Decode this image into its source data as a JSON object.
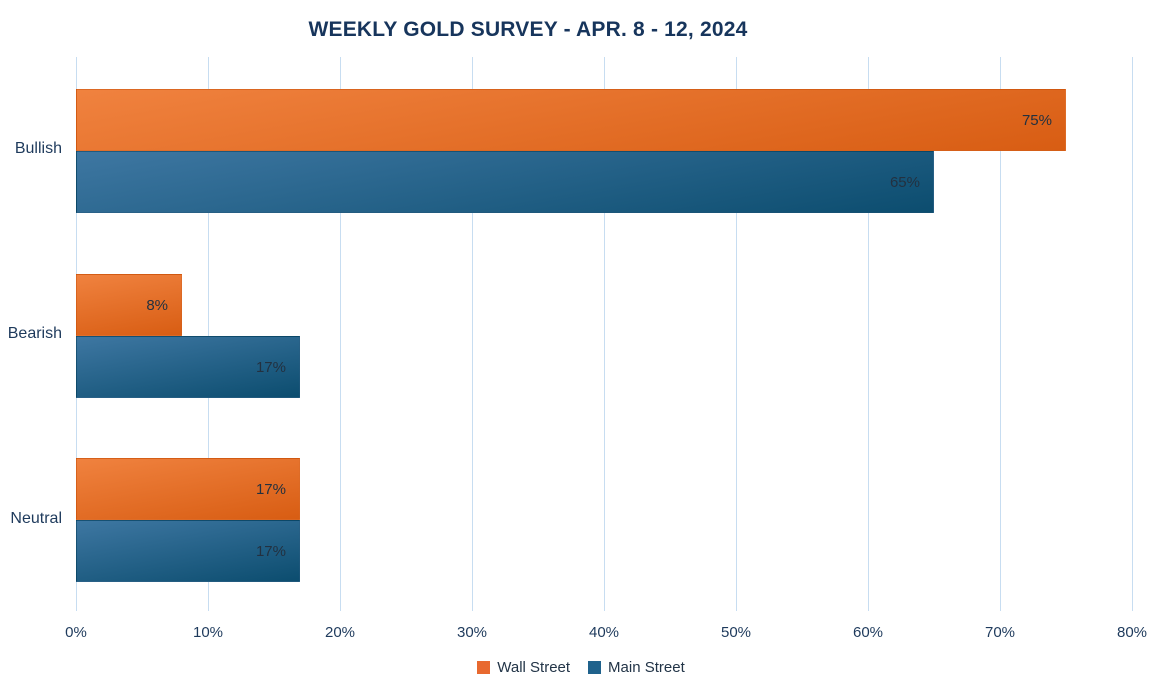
{
  "chart_data": {
    "type": "bar",
    "orientation": "horizontal",
    "title": "WEEKLY GOLD SURVEY - APR. 8 - 12, 2024",
    "categories": [
      "Bullish",
      "Bearish",
      "Neutral"
    ],
    "series": [
      {
        "name": "Wall Street",
        "values": [
          75,
          8,
          17
        ],
        "labels": [
          "75%",
          "8%",
          "17%"
        ],
        "gradient_top": "#F0823F",
        "gradient_bottom": "#D85D13",
        "legend_color": "#E8692F",
        "border_color": "rgba(196,78,10,0.35)"
      },
      {
        "name": "Main Street",
        "values": [
          65,
          17,
          17
        ],
        "labels": [
          "65%",
          "17%",
          "17%"
        ],
        "gradient_top": "#3E77A2",
        "gradient_bottom": "#0C4D6F",
        "legend_color": "#1F628C",
        "border_color": "rgba(10,60,88,0.35)"
      }
    ],
    "xlim": [
      0,
      80
    ],
    "xtick_values": [
      0,
      10,
      20,
      30,
      40,
      50,
      60,
      70,
      80
    ],
    "xticks": [
      "0%",
      "10%",
      "20%",
      "30%",
      "40%",
      "50%",
      "60%",
      "70%",
      "80%"
    ],
    "grid": true,
    "legend_position": "bottom"
  },
  "colors": {
    "background": "#FFFFFF",
    "gridline": "#C7DDF1",
    "title_text": "#17355C",
    "axis_text": "#1E3A5C",
    "data_label_text": "#233140",
    "legend_text": "#223447"
  }
}
